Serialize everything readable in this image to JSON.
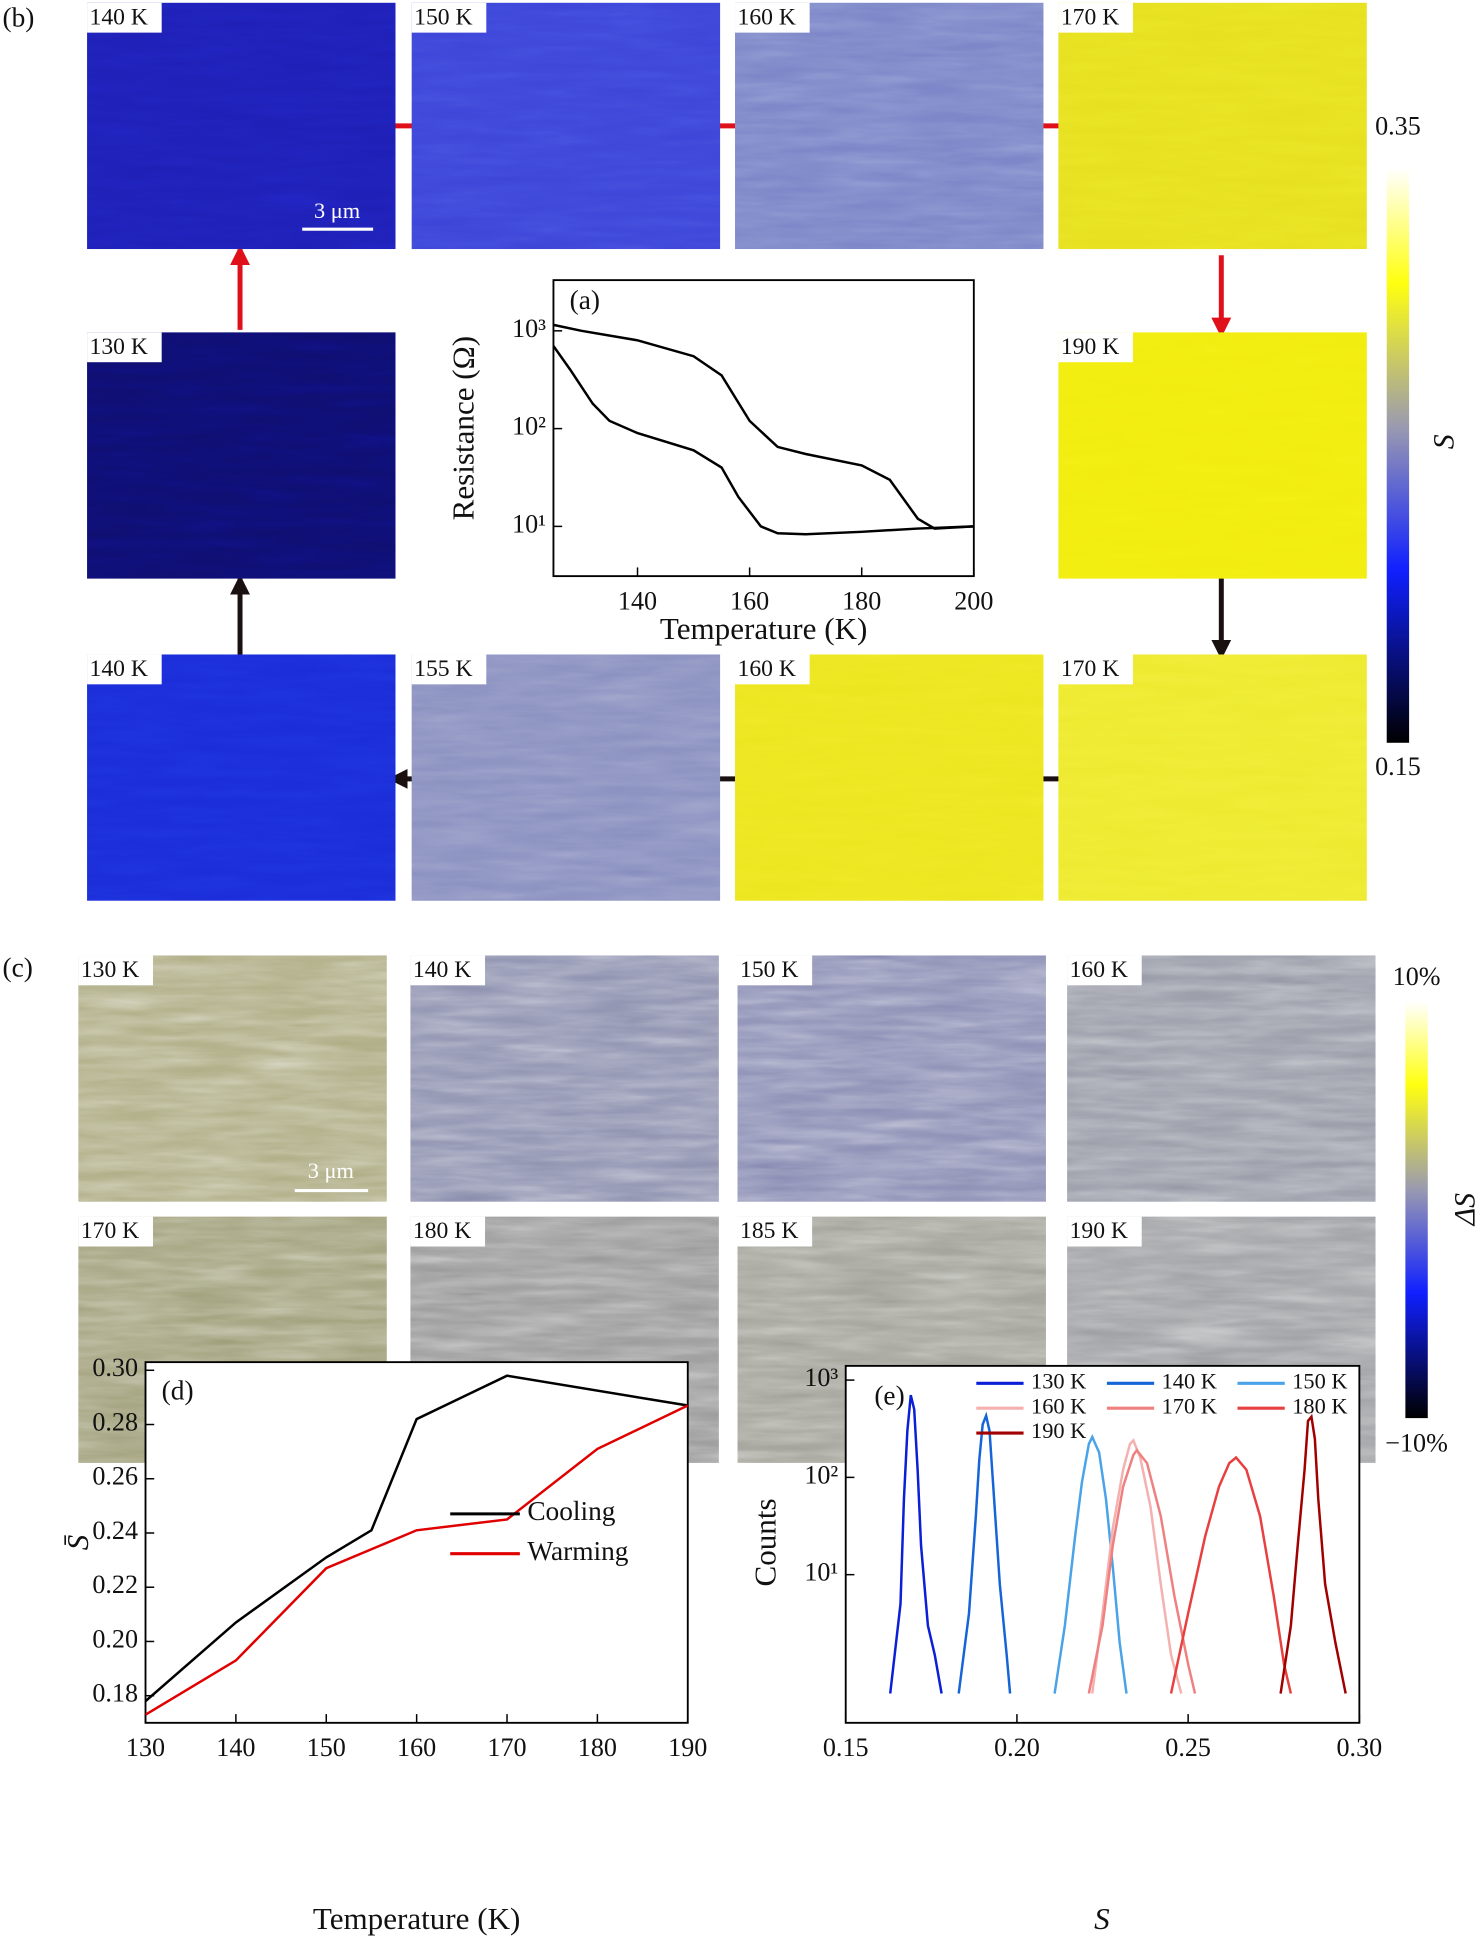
{
  "panel_b": {
    "label": "(b)",
    "scale_bar": "3 μm",
    "maps": [
      {
        "label": "140 K",
        "color": "#1d1fb5"
      },
      {
        "label": "150 K",
        "color": "#3c45d8"
      },
      {
        "label": "160 K",
        "color": "#7b85c8"
      },
      {
        "label": "170 K",
        "color": "#e6e020"
      },
      {
        "label": "130 K",
        "color": "#0e0e70"
      },
      {
        "label": "190 K",
        "color": "#f2ec10"
      },
      {
        "label": "140 K",
        "color": "#1a2cd8"
      },
      {
        "label": "155 K",
        "color": "#8a90c0"
      },
      {
        "label": "160 K",
        "color": "#ece620"
      },
      {
        "label": "170 K",
        "color": "#eeea30"
      }
    ],
    "colorbar": {
      "label": "S",
      "ticks": [
        0.35,
        0.15
      ]
    }
  },
  "panel_c": {
    "label": "(c)",
    "scale_bar": "3 μm",
    "maps": [
      {
        "label": "130 K",
        "color": "#b0ae86"
      },
      {
        "label": "140 K",
        "color": "#8f92b0"
      },
      {
        "label": "150 K",
        "color": "#8c8fb5"
      },
      {
        "label": "160 K",
        "color": "#999ca8"
      },
      {
        "label": "170 K",
        "color": "#a3a27e"
      },
      {
        "label": "180 K",
        "color": "#9a9b9a"
      },
      {
        "label": "185 K",
        "color": "#a3a39a"
      },
      {
        "label": "190 K",
        "color": "#a0a1a4"
      }
    ],
    "colorbar": {
      "label": "ΔS",
      "ticks": [
        {
          "value": 10,
          "label": "10%"
        },
        {
          "value": -10,
          "label": "−10%"
        }
      ]
    }
  },
  "chart_data": [
    {
      "type": "line",
      "annotation": "(a)",
      "xlabel": "Temperature (K)",
      "ylabel": "Resistance (Ω)",
      "xlim": [
        125,
        200
      ],
      "ylim": [
        3.1,
        3300
      ],
      "log_y": true,
      "xticks": [
        140,
        160,
        180,
        200
      ],
      "yticks": [
        {
          "value": 10,
          "label": "10¹"
        },
        {
          "value": 100,
          "label": "10²"
        },
        {
          "value": 1000,
          "label": "10³"
        }
      ],
      "series": [
        {
          "color": "#000000",
          "x": [
            125,
            130,
            140,
            150,
            155,
            160,
            165,
            170,
            180,
            185,
            190,
            193,
            200
          ],
          "values": [
            1150,
            1000,
            800,
            550,
            350,
            120,
            65,
            55,
            42,
            30,
            12,
            9.5,
            10
          ]
        },
        {
          "color": "#000000",
          "x": [
            125,
            128,
            132,
            135,
            140,
            150,
            155,
            158,
            162,
            165,
            170,
            180,
            190,
            200
          ],
          "values": [
            700,
            400,
            180,
            120,
            90,
            60,
            40,
            20,
            10,
            8.5,
            8.3,
            8.8,
            9.5,
            10
          ]
        }
      ]
    },
    {
      "type": "line",
      "annotation": "(d)",
      "xlabel": "Temperature (K)",
      "ylabel": "S̄",
      "xlim": [
        130,
        190
      ],
      "ylim": [
        0.17,
        0.303
      ],
      "legend": "lower right",
      "xticks": [
        130,
        140,
        150,
        160,
        170,
        180,
        190
      ],
      "yticks": [
        0.18,
        {
          "value": 0.2,
          "label": "0.20"
        },
        0.22,
        0.24,
        0.26,
        0.28,
        {
          "value": 0.3,
          "label": "0.30"
        }
      ],
      "series": [
        {
          "name": "Cooling",
          "color": "#000000",
          "x": [
            130,
            140,
            150,
            155,
            160,
            170,
            190
          ],
          "values": [
            0.178,
            0.207,
            0.231,
            0.241,
            0.282,
            0.298,
            0.287
          ]
        },
        {
          "name": "Warming",
          "color": "#e00000",
          "x": [
            130,
            140,
            150,
            160,
            170,
            180,
            190
          ],
          "values": [
            0.173,
            0.193,
            0.227,
            0.241,
            0.245,
            0.271,
            0.287
          ]
        }
      ]
    },
    {
      "type": "line",
      "annotation": "(e)",
      "xlabel": "S",
      "ylabel": "Counts",
      "xlim": [
        0.15,
        0.3
      ],
      "ylim": [
        0.3,
        1400
      ],
      "log_y": true,
      "legend": "upper right",
      "xticks": [
        0.15,
        {
          "value": 0.2,
          "label": "0.20"
        },
        0.25,
        {
          "value": 0.3,
          "label": "0.30"
        }
      ],
      "yticks": [
        {
          "value": 10,
          "label": "10¹"
        },
        {
          "value": 100,
          "label": "10²"
        },
        {
          "value": 1000,
          "label": "10³"
        }
      ],
      "series": [
        {
          "name": "130 K",
          "color": "#0a1fd6",
          "x": [
            0.163,
            0.166,
            0.167,
            0.168,
            0.169,
            0.17,
            0.171,
            0.172,
            0.174,
            0.176,
            0.178
          ],
          "values": [
            0.6,
            5,
            60,
            300,
            700,
            500,
            120,
            20,
            3,
            1.5,
            0.6
          ]
        },
        {
          "name": "140 K",
          "color": "#1565d8",
          "x": [
            0.183,
            0.186,
            0.188,
            0.189,
            0.19,
            0.191,
            0.192,
            0.193,
            0.195,
            0.197,
            0.198
          ],
          "values": [
            0.6,
            4,
            40,
            150,
            350,
            430,
            300,
            90,
            8,
            1.5,
            0.6
          ]
        },
        {
          "name": "150 K",
          "color": "#4aa3e8",
          "x": [
            0.211,
            0.214,
            0.217,
            0.219,
            0.221,
            0.222,
            0.224,
            0.226,
            0.228,
            0.23,
            0.232
          ],
          "values": [
            0.6,
            3,
            25,
            90,
            220,
            260,
            180,
            60,
            12,
            2,
            0.6
          ]
        },
        {
          "name": "160 K",
          "color": "#f5b0b0",
          "x": [
            0.222,
            0.225,
            0.228,
            0.231,
            0.233,
            0.234,
            0.236,
            0.239,
            0.242,
            0.245,
            0.248
          ],
          "values": [
            0.6,
            4,
            30,
            120,
            220,
            240,
            160,
            50,
            8,
            1.5,
            0.6
          ]
        },
        {
          "name": "170 K",
          "color": "#ef8080",
          "x": [
            0.221,
            0.225,
            0.228,
            0.231,
            0.234,
            0.235,
            0.238,
            0.242,
            0.246,
            0.25,
            0.252
          ],
          "values": [
            0.6,
            3,
            20,
            80,
            170,
            190,
            140,
            40,
            6,
            1.2,
            0.6
          ]
        },
        {
          "name": "180 K",
          "color": "#e84040",
          "x": [
            0.245,
            0.25,
            0.255,
            0.259,
            0.262,
            0.264,
            0.267,
            0.271,
            0.275,
            0.278,
            0.28
          ],
          "values": [
            0.6,
            4,
            25,
            80,
            140,
            160,
            120,
            40,
            6,
            1.2,
            0.6
          ]
        },
        {
          "name": "190 K",
          "color": "#a00000",
          "x": [
            0.277,
            0.28,
            0.282,
            0.284,
            0.285,
            0.286,
            0.287,
            0.288,
            0.29,
            0.293,
            0.296
          ],
          "values": [
            0.6,
            3,
            20,
            120,
            380,
            420,
            250,
            60,
            8,
            2,
            0.6
          ]
        }
      ]
    }
  ]
}
